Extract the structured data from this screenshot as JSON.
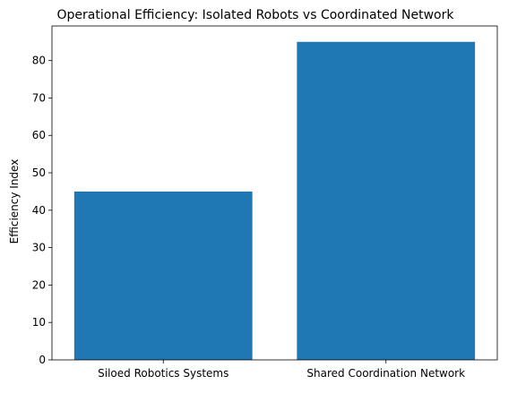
{
  "chart_data": {
    "type": "bar",
    "title": "Operational Efficiency: Isolated Robots vs Coordinated Network",
    "xlabel": "",
    "ylabel": "Efficiency Index",
    "categories": [
      "Siloed Robotics Systems",
      "Shared Coordination Network"
    ],
    "values": [
      45,
      85
    ],
    "ylim": [
      0,
      89.25
    ],
    "yticks": [
      0,
      10,
      20,
      30,
      40,
      50,
      60,
      70,
      80
    ],
    "bar_color": "#1f77b4",
    "grid": false,
    "legend": "none"
  }
}
